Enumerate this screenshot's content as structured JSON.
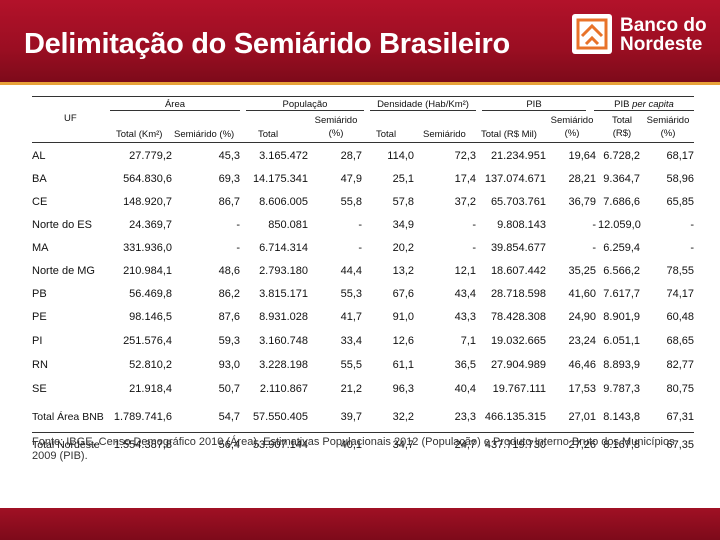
{
  "title": "Delimitação do Semiárido Brasileiro",
  "logo": {
    "line1": "Banco do",
    "line2": "Nordeste"
  },
  "colors": {
    "header": "#9a0e22",
    "accent": "#e8a23a",
    "logo_orange": "#e8732a"
  },
  "headers": {
    "uf": "UF",
    "area": "Área",
    "populacao": "População",
    "densidade": "Densidade (Hab/Km²)",
    "pib": "PIB",
    "pib_pc": "PIB",
    "pib_pc_italic": "per capita",
    "area_total": "Total (Km²)",
    "area_semi": "Semiárido (%)",
    "pop_total": "Total",
    "pop_semi_1": "Semiárido",
    "pop_semi_2": "(%)",
    "dens_total": "Total",
    "dens_semi": "Semiárido",
    "pib_total": "Total (R$ Mil)",
    "pib_semi_1": "Semiárido",
    "pib_semi_2": "(%)",
    "pc_total_1": "Total",
    "pc_total_2": "(R$)",
    "pc_semi_1": "Semiárido",
    "pc_semi_2": "(%)"
  },
  "rows": [
    {
      "uf": "AL",
      "area_total": "27.779,2",
      "area_semi": "45,3",
      "pop_total": "3.165.472",
      "pop_semi": "28,7",
      "dens_total": "114,0",
      "dens_semi": "72,3",
      "pib_total": "21.234.951",
      "pib_semi": "19,64",
      "pc_total": "6.728,2",
      "pc_semi": "68,17"
    },
    {
      "uf": "BA",
      "area_total": "564.830,6",
      "area_semi": "69,3",
      "pop_total": "14.175.341",
      "pop_semi": "47,9",
      "dens_total": "25,1",
      "dens_semi": "17,4",
      "pib_total": "137.074.671",
      "pib_semi": "28,21",
      "pc_total": "9.364,7",
      "pc_semi": "58,96"
    },
    {
      "uf": "CE",
      "area_total": "148.920,7",
      "area_semi": "86,7",
      "pop_total": "8.606.005",
      "pop_semi": "55,8",
      "dens_total": "57,8",
      "dens_semi": "37,2",
      "pib_total": "65.703.761",
      "pib_semi": "36,79",
      "pc_total": "7.686,6",
      "pc_semi": "65,85"
    },
    {
      "uf": "Norte do ES",
      "area_total": "24.369,7",
      "area_semi": "-",
      "pop_total": "850.081",
      "pop_semi": "-",
      "dens_total": "34,9",
      "dens_semi": "-",
      "pib_total": "9.808.143",
      "pib_semi": "-",
      "pc_total": "12.059,0",
      "pc_semi": "-"
    },
    {
      "uf": "MA",
      "area_total": "331.936,0",
      "area_semi": "-",
      "pop_total": "6.714.314",
      "pop_semi": "-",
      "dens_total": "20,2",
      "dens_semi": "-",
      "pib_total": "39.854.677",
      "pib_semi": "-",
      "pc_total": "6.259,4",
      "pc_semi": "-"
    },
    {
      "uf": "Norte de MG",
      "area_total": "210.984,1",
      "area_semi": "48,6",
      "pop_total": "2.793.180",
      "pop_semi": "44,4",
      "dens_total": "13,2",
      "dens_semi": "12,1",
      "pib_total": "18.607.442",
      "pib_semi": "35,25",
      "pc_total": "6.566,2",
      "pc_semi": "78,55"
    },
    {
      "uf": "PB",
      "area_total": "56.469,8",
      "area_semi": "86,2",
      "pop_total": "3.815.171",
      "pop_semi": "55,3",
      "dens_total": "67,6",
      "dens_semi": "43,4",
      "pib_total": "28.718.598",
      "pib_semi": "41,60",
      "pc_total": "7.617,7",
      "pc_semi": "74,17"
    },
    {
      "uf": "PE",
      "area_total": "98.146,5",
      "area_semi": "87,6",
      "pop_total": "8.931.028",
      "pop_semi": "41,7",
      "dens_total": "91,0",
      "dens_semi": "43,3",
      "pib_total": "78.428.308",
      "pib_semi": "24,90",
      "pc_total": "8.901,9",
      "pc_semi": "60,48"
    },
    {
      "uf": "PI",
      "area_total": "251.576,4",
      "area_semi": "59,3",
      "pop_total": "3.160.748",
      "pop_semi": "33,4",
      "dens_total": "12,6",
      "dens_semi": "7,1",
      "pib_total": "19.032.665",
      "pib_semi": "23,24",
      "pc_total": "6.051,1",
      "pc_semi": "68,65"
    },
    {
      "uf": "RN",
      "area_total": "52.810,2",
      "area_semi": "93,0",
      "pop_total": "3.228.198",
      "pop_semi": "55,5",
      "dens_total": "61,1",
      "dens_semi": "36,5",
      "pib_total": "27.904.989",
      "pib_semi": "46,46",
      "pc_total": "8.893,9",
      "pc_semi": "82,77"
    },
    {
      "uf": "SE",
      "area_total": "21.918,4",
      "area_semi": "50,7",
      "pop_total": "2.110.867",
      "pop_semi": "21,2",
      "dens_total": "96,3",
      "dens_semi": "40,4",
      "pib_total": "19.767.111",
      "pib_semi": "17,53",
      "pc_total": "9.787,3",
      "pc_semi": "80,75"
    },
    {
      "uf": "Total Área BNB",
      "area_total": "1.789.741,6",
      "area_semi": "54,7",
      "pop_total": "57.550.405",
      "pop_semi": "39,7",
      "dens_total": "32,2",
      "dens_semi": "23,3",
      "pib_total": "466.135.315",
      "pib_semi": "27,01",
      "pc_total": "8.143,8",
      "pc_semi": "67,31"
    },
    {
      "uf": "Total Nordeste",
      "area_total": "1.554.387,8",
      "area_semi": "56,4",
      "pop_total": "53.907.144",
      "pop_semi": "40,1",
      "dens_total": "34,7",
      "dens_semi": "24,7",
      "pib_total": "437.719.730",
      "pib_semi": "27,26",
      "pc_total": "8.167,8",
      "pc_semi": "67,35"
    }
  ],
  "source": "Fonte: IBGE, Censo Demográfico 2010 (Área), Estimativas Populacionais 2012 (População) e Produto Interno Bruto dos Municípios 2009 (PIB)."
}
